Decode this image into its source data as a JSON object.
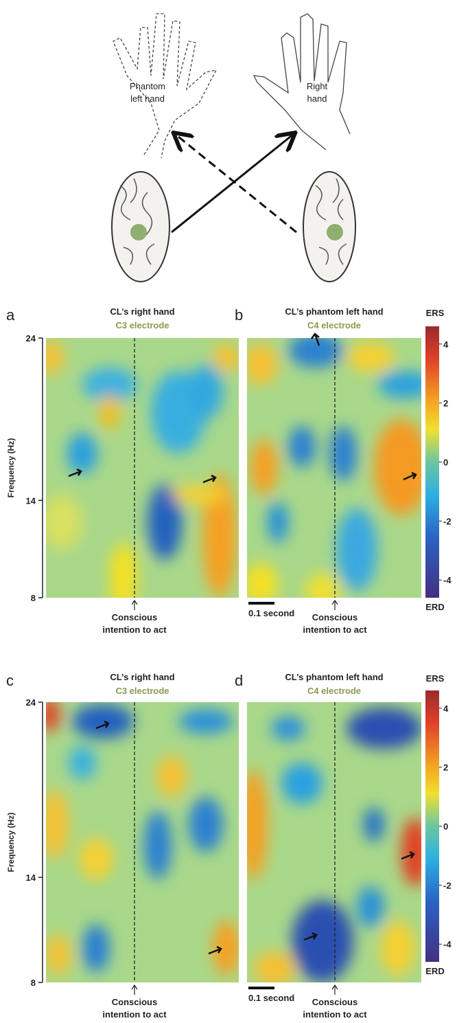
{
  "schematic": {
    "phantom_label": [
      "Phantom",
      "left hand"
    ],
    "right_label": [
      "Right",
      "hand"
    ]
  },
  "panels": [
    {
      "letter": "a",
      "title": "CL’s right hand",
      "electrode": "C3 electrode",
      "ylabel": "Frequency (Hz)",
      "ylim": [
        8,
        24
      ],
      "yticks": [
        8,
        14,
        24
      ],
      "event_label": [
        "Conscious",
        "intention to act"
      ]
    },
    {
      "letter": "b",
      "title": "CL’s phantom left hand",
      "electrode": "C4 electrode",
      "event_label": [
        "Conscious",
        "intention to act"
      ],
      "scale_bar": "0.1 second",
      "colorbar": {
        "top_label": "ERS",
        "bottom_label": "ERD",
        "clim": [
          -4.6,
          4.6
        ],
        "ticks": [
          4,
          2,
          0,
          -2,
          -4
        ]
      }
    },
    {
      "letter": "c",
      "title": "CL’s right hand",
      "electrode": "C3 electrode",
      "ylabel": "Frequency (Hz)",
      "ylim": [
        8,
        24
      ],
      "yticks": [
        8,
        14,
        24
      ],
      "event_label": [
        "Conscious",
        "intention to act"
      ]
    },
    {
      "letter": "d",
      "title": "CL’s phantom left hand",
      "electrode": "C4 electrode",
      "event_label": [
        "Conscious",
        "intention to act"
      ],
      "scale_bar": "0.1 second",
      "colorbar": {
        "top_label": "ERS",
        "bottom_label": "ERD",
        "clim": [
          -4.6,
          4.6
        ],
        "ticks": [
          4,
          2,
          0,
          -2,
          -4
        ]
      }
    }
  ]
}
